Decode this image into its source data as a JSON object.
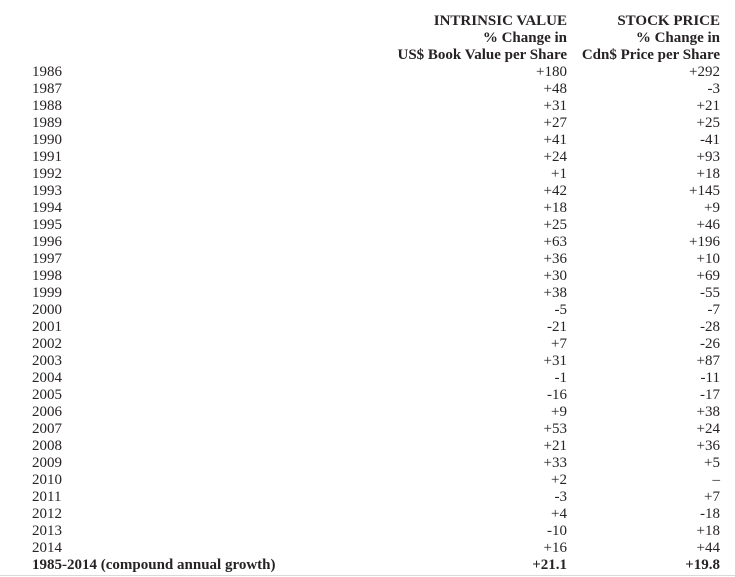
{
  "page": {
    "background_color": "#ffffff",
    "text_color": "#272324"
  },
  "table": {
    "header": {
      "intrinsic_lines": [
        "INTRINSIC VALUE",
        "% Change in",
        "US$ Book Value per Share"
      ],
      "stock_lines": [
        "STOCK PRICE",
        "% Change in",
        "Cdn$ Price per Share"
      ]
    },
    "rows": [
      {
        "year": "1986",
        "intrinsic": "+180",
        "stock": "+292"
      },
      {
        "year": "1987",
        "intrinsic": "+48",
        "stock": "-3"
      },
      {
        "year": "1988",
        "intrinsic": "+31",
        "stock": "+21"
      },
      {
        "year": "1989",
        "intrinsic": "+27",
        "stock": "+25"
      },
      {
        "year": "1990",
        "intrinsic": "+41",
        "stock": "-41"
      },
      {
        "year": "1991",
        "intrinsic": "+24",
        "stock": "+93"
      },
      {
        "year": "1992",
        "intrinsic": "+1",
        "stock": "+18"
      },
      {
        "year": "1993",
        "intrinsic": "+42",
        "stock": "+145"
      },
      {
        "year": "1994",
        "intrinsic": "+18",
        "stock": "+9"
      },
      {
        "year": "1995",
        "intrinsic": "+25",
        "stock": "+46"
      },
      {
        "year": "1996",
        "intrinsic": "+63",
        "stock": "+196"
      },
      {
        "year": "1997",
        "intrinsic": "+36",
        "stock": "+10"
      },
      {
        "year": "1998",
        "intrinsic": "+30",
        "stock": "+69"
      },
      {
        "year": "1999",
        "intrinsic": "+38",
        "stock": "-55"
      },
      {
        "year": "2000",
        "intrinsic": "-5",
        "stock": "-7"
      },
      {
        "year": "2001",
        "intrinsic": "-21",
        "stock": "-28"
      },
      {
        "year": "2002",
        "intrinsic": "+7",
        "stock": "-26"
      },
      {
        "year": "2003",
        "intrinsic": "+31",
        "stock": "+87"
      },
      {
        "year": "2004",
        "intrinsic": "-1",
        "stock": "-11"
      },
      {
        "year": "2005",
        "intrinsic": "-16",
        "stock": "-17"
      },
      {
        "year": "2006",
        "intrinsic": "+9",
        "stock": "+38"
      },
      {
        "year": "2007",
        "intrinsic": "+53",
        "stock": "+24"
      },
      {
        "year": "2008",
        "intrinsic": "+21",
        "stock": "+36"
      },
      {
        "year": "2009",
        "intrinsic": "+33",
        "stock": "+5"
      },
      {
        "year": "2010",
        "intrinsic": "+2",
        "stock": "–"
      },
      {
        "year": "2011",
        "intrinsic": "-3",
        "stock": "+7"
      },
      {
        "year": "2012",
        "intrinsic": "+4",
        "stock": "-18"
      },
      {
        "year": "2013",
        "intrinsic": "-10",
        "stock": "+18"
      },
      {
        "year": "2014",
        "intrinsic": "+16",
        "stock": "+44"
      }
    ],
    "summary": {
      "label": "1985-2014 (compound annual growth)",
      "intrinsic": "+21.1",
      "stock": "+19.8"
    }
  }
}
